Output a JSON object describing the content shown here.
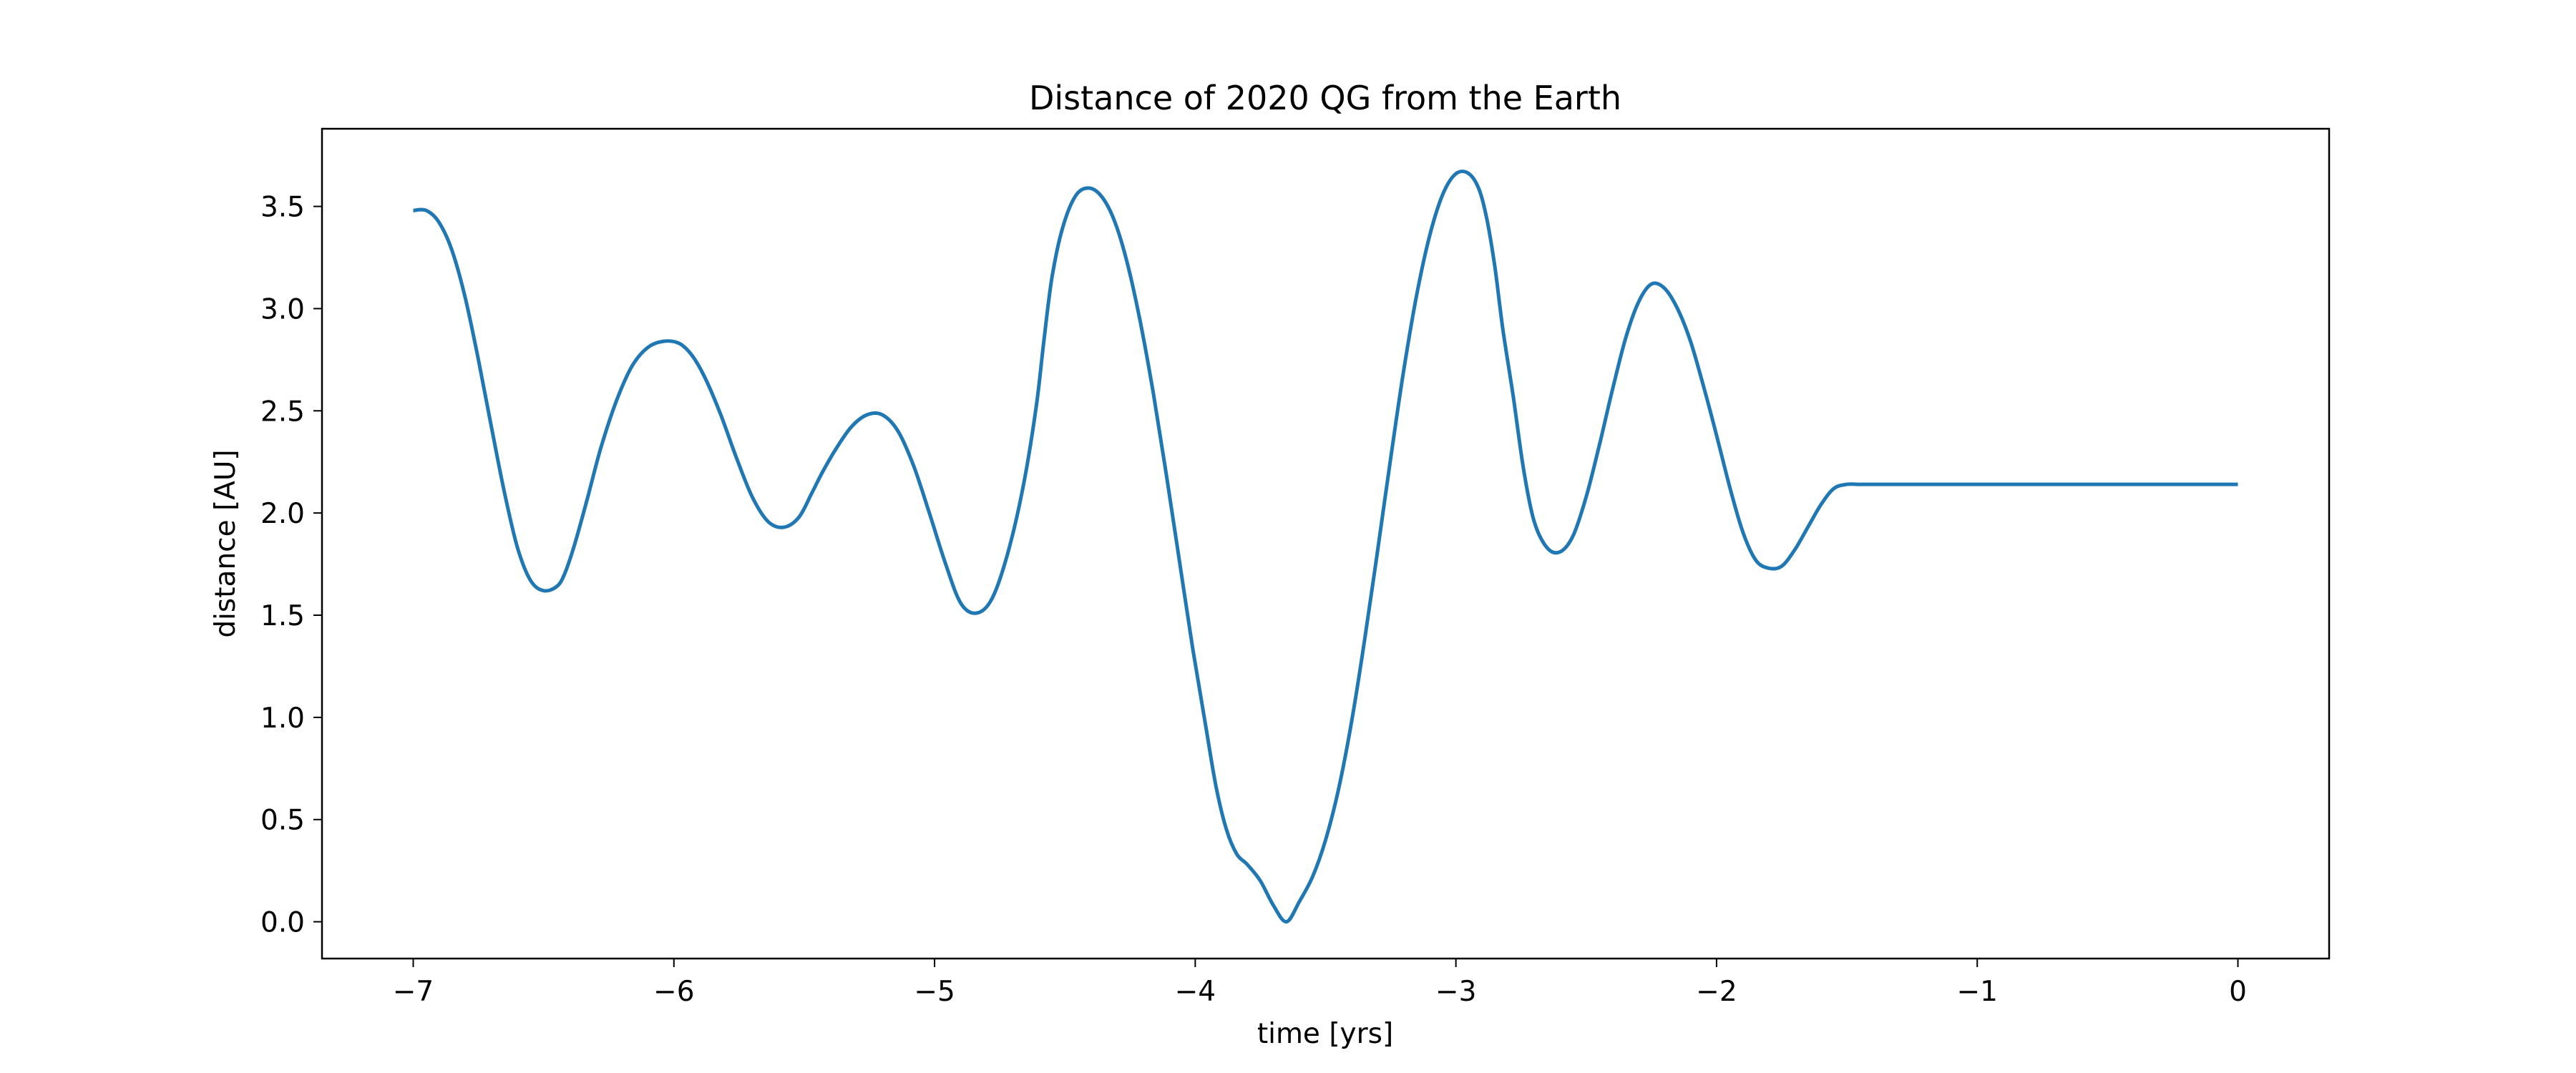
{
  "chart_data": {
    "type": "line",
    "title": "Distance of 2020 QG from the Earth",
    "xlabel": "time [yrs]",
    "ylabel": "distance [AU]",
    "xlim": [
      -7.35,
      0.35
    ],
    "ylim": [
      -0.18,
      3.88
    ],
    "grid": false,
    "xticks": [
      -7,
      -6,
      -5,
      -4,
      -3,
      -2,
      -1,
      0
    ],
    "xtick_labels": [
      "−7",
      "−6",
      "−5",
      "−4",
      "−3",
      "−2",
      "−1",
      "0"
    ],
    "yticks": [
      0.0,
      0.5,
      1.0,
      1.5,
      2.0,
      2.5,
      3.0,
      3.5
    ],
    "ytick_labels": [
      "0.0",
      "0.5",
      "1.0",
      "1.5",
      "2.0",
      "2.5",
      "3.0",
      "3.5"
    ],
    "series": [
      {
        "color": "#1f77b4",
        "x": [
          -7.0,
          -6.95,
          -6.9,
          -6.85,
          -6.8,
          -6.75,
          -6.7,
          -6.65,
          -6.6,
          -6.55,
          -6.5,
          -6.45,
          -6.42,
          -6.38,
          -6.33,
          -6.28,
          -6.22,
          -6.16,
          -6.1,
          -6.04,
          -5.98,
          -5.93,
          -5.88,
          -5.82,
          -5.76,
          -5.7,
          -5.64,
          -5.58,
          -5.52,
          -5.47,
          -5.43,
          -5.38,
          -5.32,
          -5.26,
          -5.2,
          -5.14,
          -5.08,
          -5.02,
          -4.96,
          -4.9,
          -4.84,
          -4.78,
          -4.72,
          -4.66,
          -4.61,
          -4.58,
          -4.55,
          -4.51,
          -4.46,
          -4.41,
          -4.36,
          -4.31,
          -4.26,
          -4.21,
          -4.16,
          -4.11,
          -4.06,
          -4.01,
          -3.96,
          -3.92,
          -3.88,
          -3.84,
          -3.8,
          -3.75,
          -3.7,
          -3.65,
          -3.6,
          -3.55,
          -3.5,
          -3.45,
          -3.4,
          -3.35,
          -3.3,
          -3.25,
          -3.2,
          -3.15,
          -3.1,
          -3.05,
          -3.0,
          -2.95,
          -2.91,
          -2.88,
          -2.85,
          -2.82,
          -2.78,
          -2.74,
          -2.7,
          -2.65,
          -2.6,
          -2.55,
          -2.5,
          -2.45,
          -2.4,
          -2.35,
          -2.3,
          -2.25,
          -2.2,
          -2.15,
          -2.1,
          -2.05,
          -2.0,
          -1.95,
          -1.9,
          -1.85,
          -1.8,
          -1.75,
          -1.7,
          -1.65,
          -1.6,
          -1.55,
          -1.5,
          -1.46,
          -1.43,
          -1.4,
          -1.36,
          -1.32,
          -1.28,
          -1.24,
          -1.2,
          -1.15,
          -1.1,
          -1.05,
          -1.0,
          -0.95,
          -0.9,
          -0.85,
          -0.8,
          -0.75,
          -0.7,
          -0.65,
          -0.6,
          -0.55,
          -0.5,
          -0.45,
          -0.4,
          -0.36,
          -0.32,
          -0.28,
          -0.24,
          -0.2,
          -0.16,
          -0.12,
          -0.08,
          -0.04,
          0.0
        ],
        "y": [
          3.48,
          3.48,
          3.42,
          3.28,
          3.05,
          2.75,
          2.42,
          2.1,
          1.83,
          1.67,
          1.62,
          1.64,
          1.7,
          1.85,
          2.08,
          2.32,
          2.55,
          2.72,
          2.81,
          2.84,
          2.83,
          2.77,
          2.66,
          2.48,
          2.27,
          2.08,
          1.96,
          1.93,
          1.98,
          2.1,
          2.2,
          2.31,
          2.42,
          2.48,
          2.48,
          2.4,
          2.23,
          2.0,
          1.76,
          1.56,
          1.51,
          1.58,
          1.8,
          2.13,
          2.52,
          2.85,
          3.15,
          3.39,
          3.55,
          3.59,
          3.55,
          3.43,
          3.22,
          2.93,
          2.58,
          2.18,
          1.76,
          1.34,
          0.96,
          0.66,
          0.45,
          0.33,
          0.28,
          0.2,
          0.08,
          0.0,
          0.1,
          0.22,
          0.4,
          0.65,
          0.98,
          1.38,
          1.82,
          2.27,
          2.7,
          3.07,
          3.36,
          3.56,
          3.66,
          3.66,
          3.58,
          3.43,
          3.2,
          2.9,
          2.57,
          2.21,
          1.96,
          1.83,
          1.81,
          1.89,
          2.08,
          2.33,
          2.6,
          2.85,
          3.03,
          3.12,
          3.1,
          3.0,
          2.84,
          2.62,
          2.38,
          2.13,
          1.91,
          1.77,
          1.73,
          1.74,
          1.82,
          1.93,
          2.04,
          2.12,
          2.14,
          2.14,
          2.14,
          2.14,
          2.14,
          2.14,
          2.14,
          2.14,
          2.14,
          2.14,
          2.14,
          2.14,
          2.14,
          2.14,
          2.14,
          2.14,
          2.14,
          2.14,
          2.14,
          2.14,
          2.14,
          2.14,
          2.14,
          2.14,
          2.14,
          2.14,
          2.14,
          2.14,
          2.14,
          2.14,
          2.14,
          2.14,
          2.14,
          2.14,
          2.14
        ]
      }
    ]
  }
}
